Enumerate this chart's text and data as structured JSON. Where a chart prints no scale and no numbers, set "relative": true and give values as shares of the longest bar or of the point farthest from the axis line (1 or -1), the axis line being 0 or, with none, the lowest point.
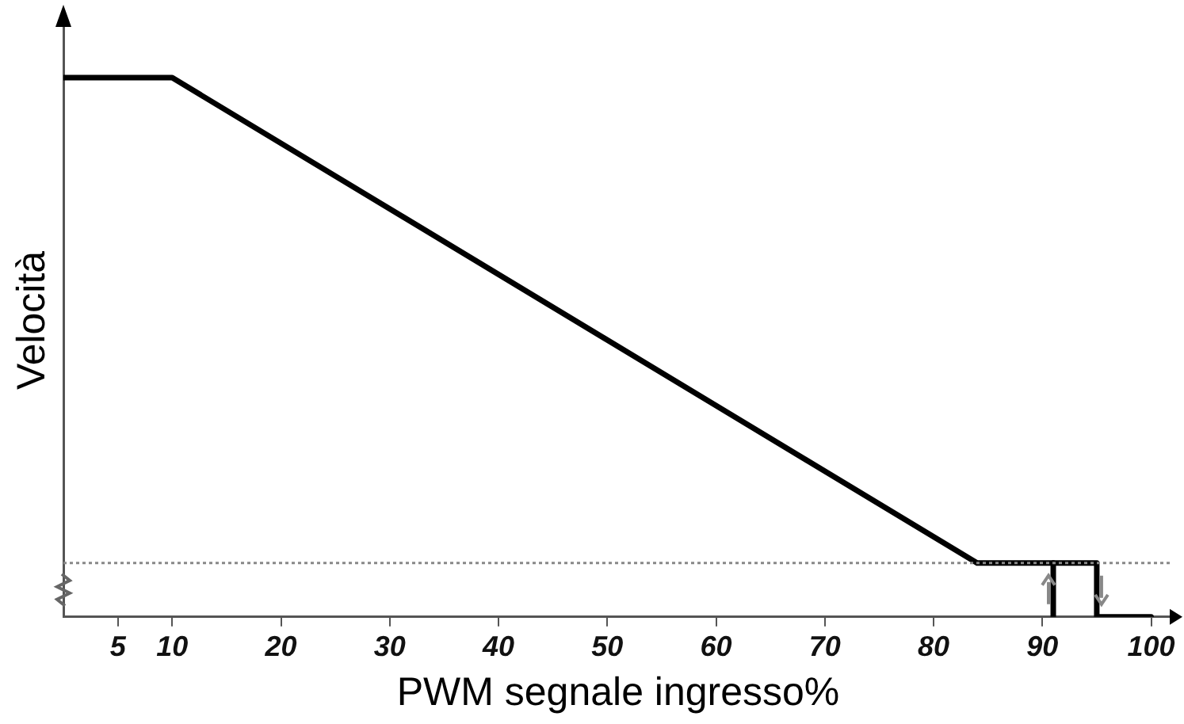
{
  "chart_data": {
    "type": "line",
    "relative": true,
    "xlabel": "PWM segnale ingresso%",
    "ylabel": "Velocità",
    "xlim": [
      0,
      102
    ],
    "xticks": [
      5,
      10,
      20,
      30,
      40,
      50,
      60,
      70,
      80,
      90,
      100
    ],
    "series": [
      {
        "color": "#000000",
        "x": [
          0,
          10,
          84,
          95,
          95,
          100
        ],
        "values": [
          1,
          1,
          0.1,
          0.1,
          0,
          0
        ]
      },
      {
        "color": "#000000",
        "x": [
          91,
          91
        ],
        "values": [
          0,
          0.1
        ]
      }
    ],
    "ref_lines": [
      {
        "axis": "y",
        "value": 0.1,
        "color": "#888888",
        "line_style": "dotted"
      }
    ],
    "grid": false,
    "legend": false,
    "marker": "none",
    "line_style": "solid"
  }
}
